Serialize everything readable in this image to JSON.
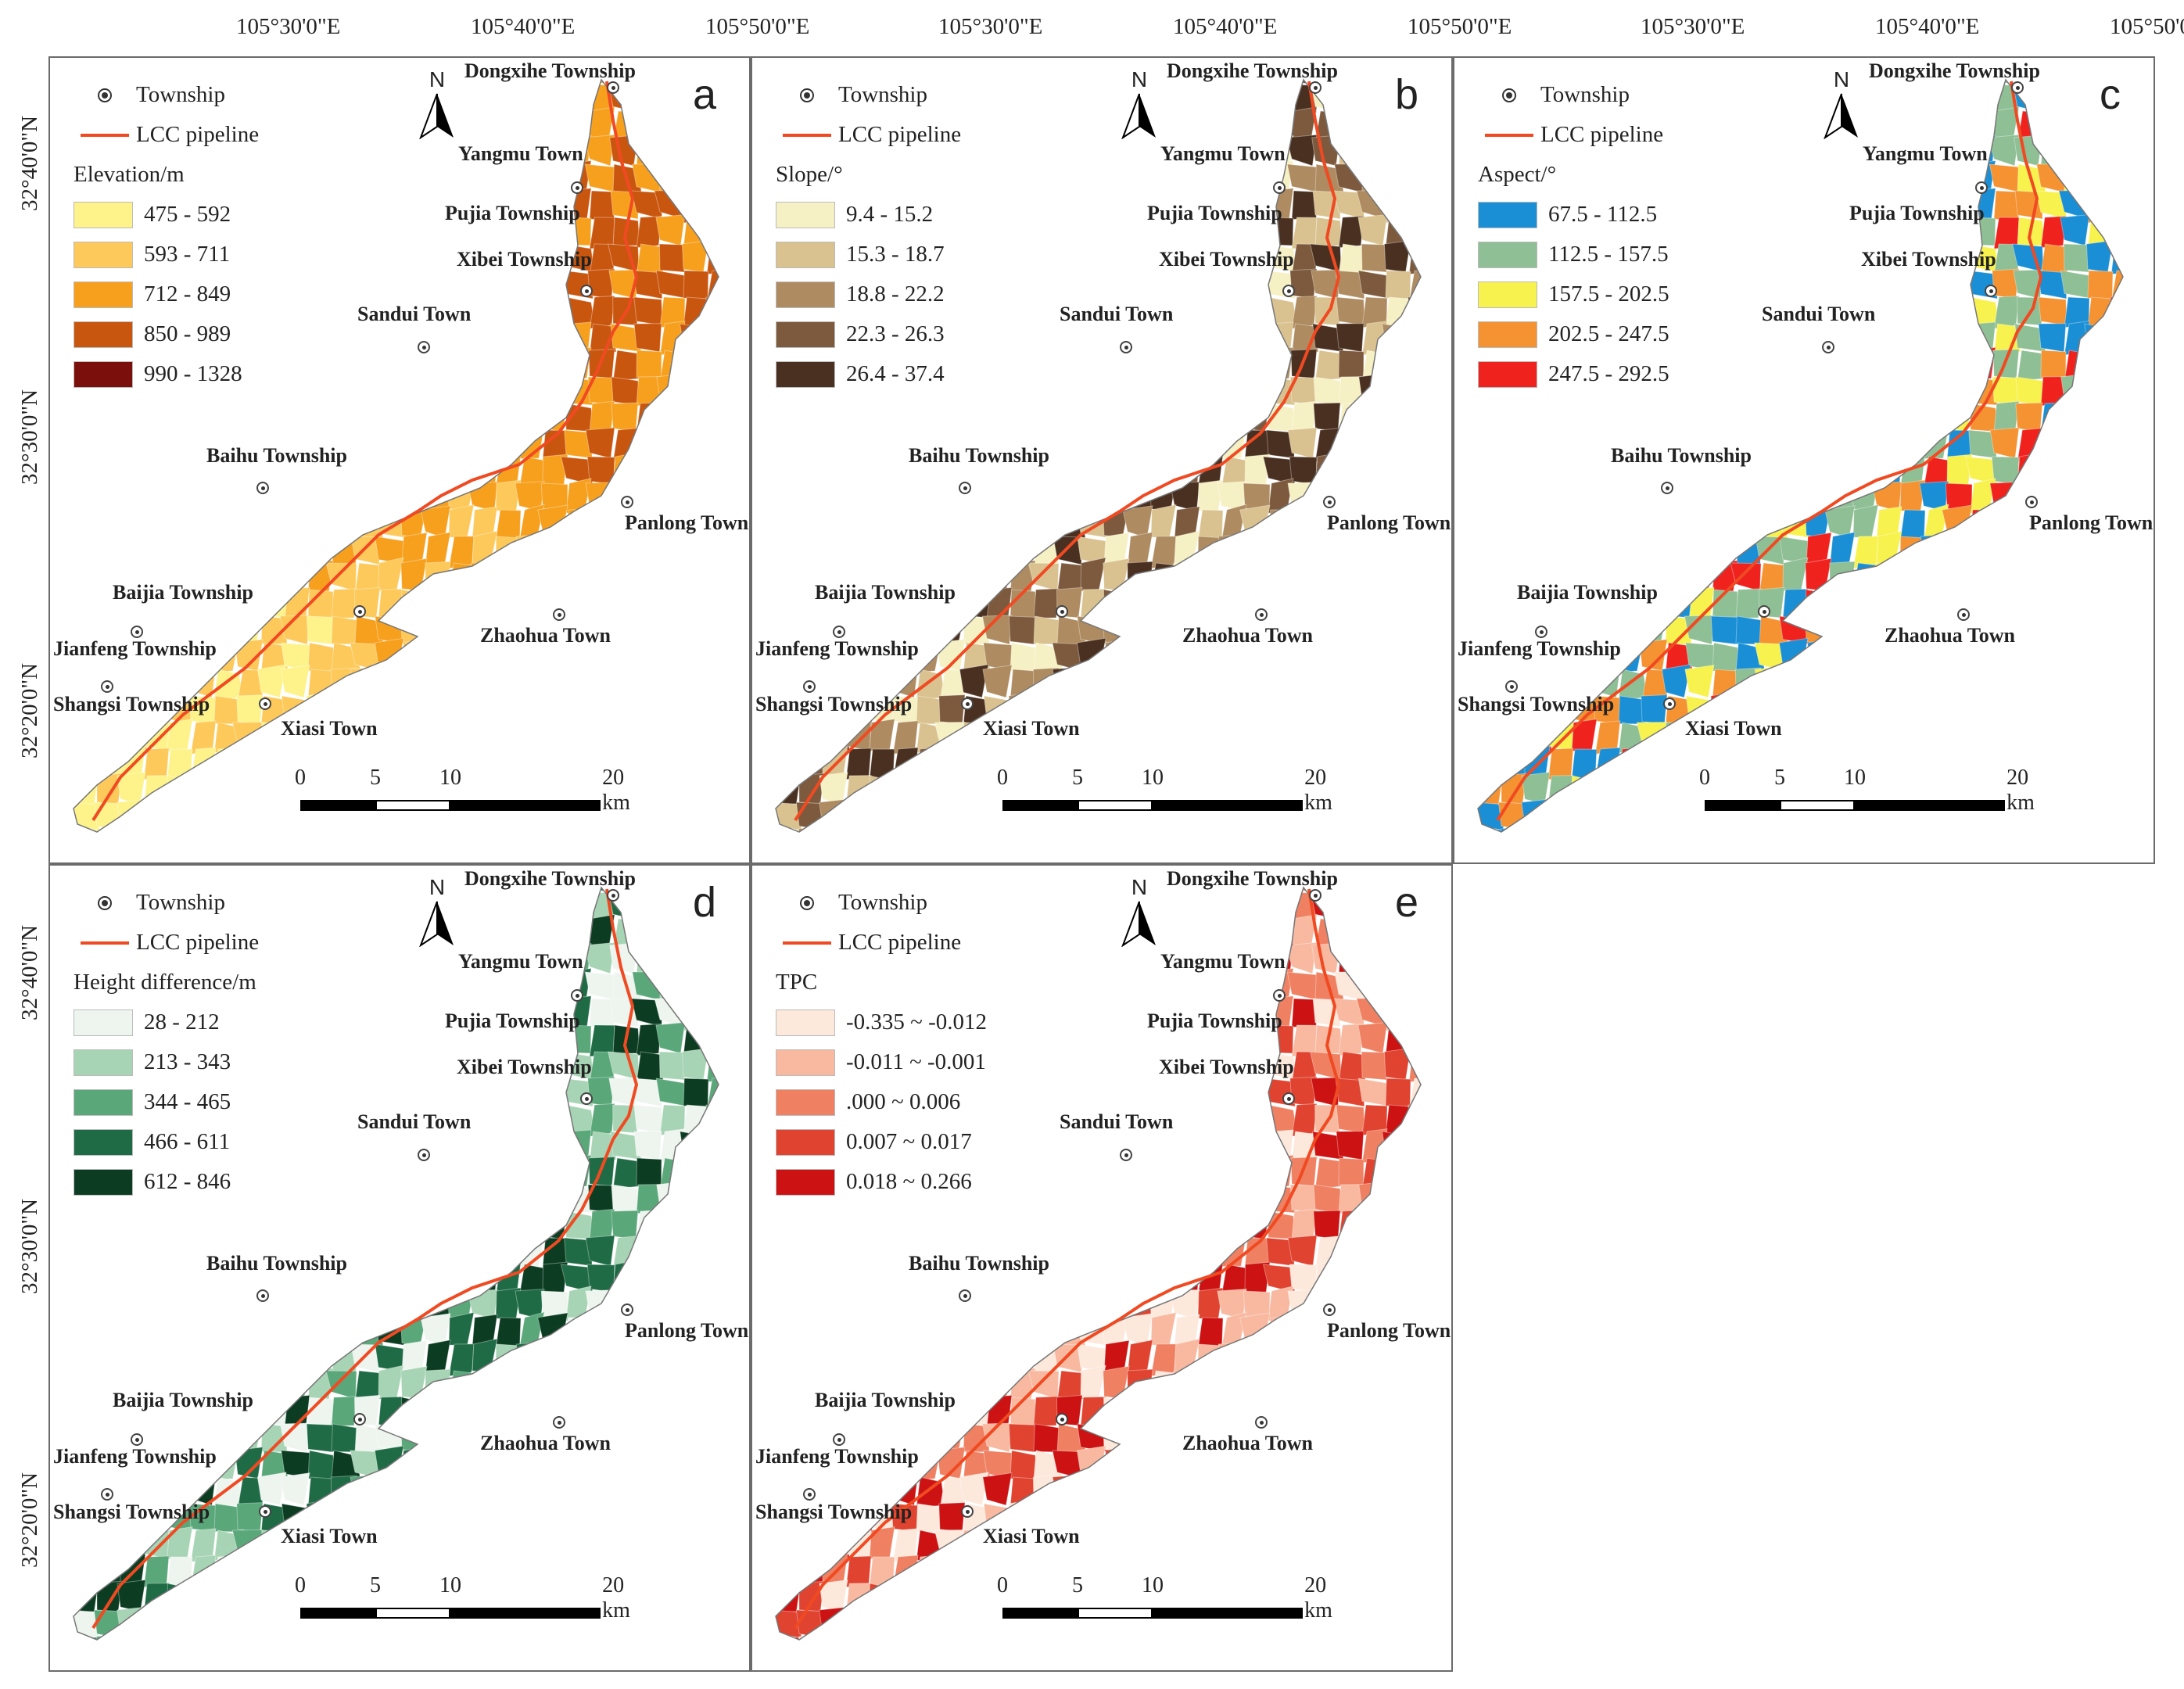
{
  "axes": {
    "lon_labels": [
      "105°30'0\"E",
      "105°40'0\"E",
      "105°50'0\"E"
    ],
    "lat_labels": [
      "32°40'0\"N",
      "32°30'0\"N",
      "32°20'0\"N"
    ]
  },
  "common_legend": {
    "township_label": "Township",
    "pipeline_label": "LCC pipeline",
    "pipeline_color": "#f04a23"
  },
  "north_arrow": "N",
  "scale_bar": {
    "labels": [
      "0",
      "5",
      "10",
      "20 km"
    ]
  },
  "towns": [
    "Dongxihe Township",
    "Yangmu Town",
    "Pujia Township",
    "Xibei Township",
    "Sandui Town",
    "Baihu Township",
    "Panlong Town",
    "Baijia Township",
    "Jianfeng Township",
    "Zhaohua Town",
    "Shangsi Township",
    "Xiasi Town"
  ],
  "panels": [
    {
      "letter": "a",
      "legend_title": "Elevation/m",
      "classes": [
        {
          "label": "475 - 592",
          "color": "#fdf38a"
        },
        {
          "label": "593 - 711",
          "color": "#fdc95a"
        },
        {
          "label": "712 - 849",
          "color": "#f6a01e"
        },
        {
          "label": "850 - 989",
          "color": "#c9560f"
        },
        {
          "label": "990 - 1328",
          "color": "#7a0f0b"
        }
      ]
    },
    {
      "letter": "b",
      "legend_title": "Slope/°",
      "classes": [
        {
          "label": "9.4 - 15.2",
          "color": "#f6f1c4"
        },
        {
          "label": "15.3 - 18.7",
          "color": "#d9c28f"
        },
        {
          "label": "18.8 - 22.2",
          "color": "#ae8b60"
        },
        {
          "label": "22.3 - 26.3",
          "color": "#7d5a3d"
        },
        {
          "label": "26.4 - 37.4",
          "color": "#4a3020"
        }
      ]
    },
    {
      "letter": "c",
      "legend_title": "Aspect/°",
      "classes": [
        {
          "label": "67.5 - 112.5",
          "color": "#1a8fd6"
        },
        {
          "label": "112.5 - 157.5",
          "color": "#8fbf94"
        },
        {
          "label": "157.5 - 202.5",
          "color": "#f8f24f"
        },
        {
          "label": "202.5 - 247.5",
          "color": "#f59231"
        },
        {
          "label": "247.5 - 292.5",
          "color": "#f0221e"
        }
      ]
    },
    {
      "letter": "d",
      "legend_title": "Height difference/m",
      "classes": [
        {
          "label": "28 - 212",
          "color": "#eef5ef"
        },
        {
          "label": "213 - 343",
          "color": "#a7d4b4"
        },
        {
          "label": "344 - 465",
          "color": "#5aa77a"
        },
        {
          "label": "466 - 611",
          "color": "#1f6b46"
        },
        {
          "label": "612 - 846",
          "color": "#0c3d22"
        }
      ]
    },
    {
      "letter": "e",
      "legend_title": "TPC",
      "classes": [
        {
          "label": "-0.335 ~ -0.012",
          "color": "#fde8dc"
        },
        {
          "label": "-0.011 ~ -0.001",
          "color": "#f8b9a0"
        },
        {
          "label": ".000 ~ 0.006",
          "color": "#ef8062"
        },
        {
          "label": "0.007 ~ 0.017",
          "color": "#e0432f"
        },
        {
          "label": "0.018 ~ 0.266",
          "color": "#cc1212"
        }
      ]
    }
  ]
}
